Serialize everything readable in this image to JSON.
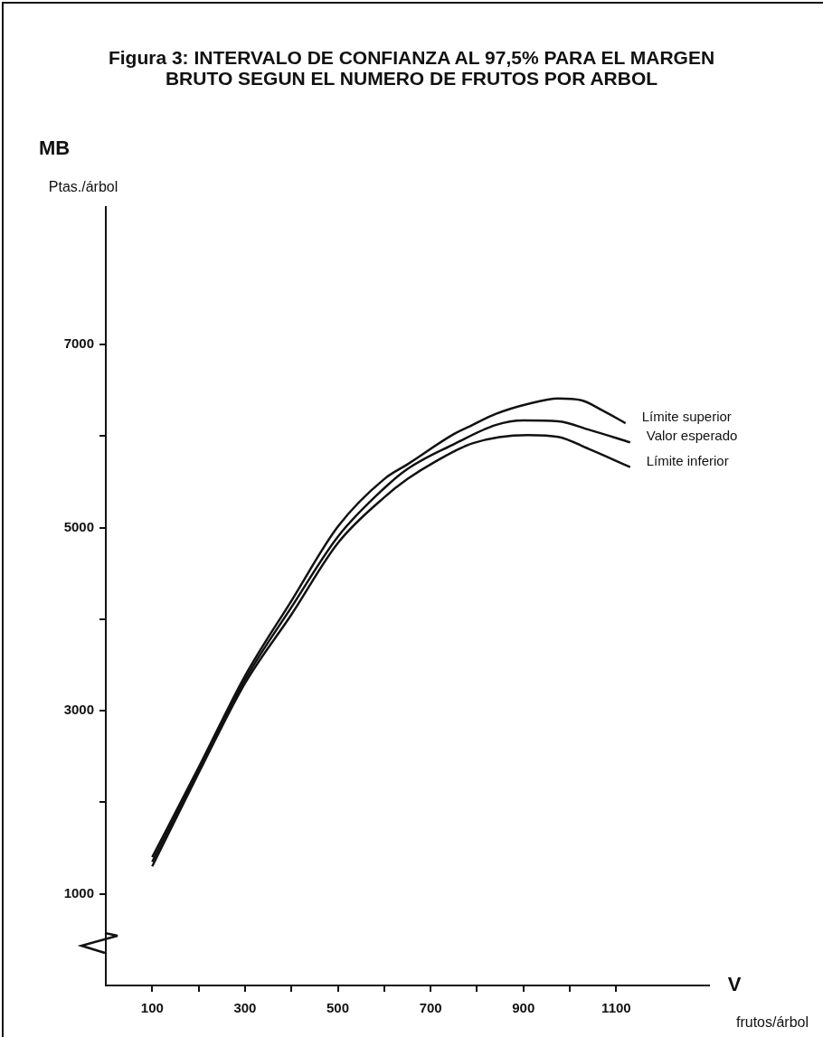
{
  "chart_data": {
    "type": "line",
    "title": "Figura 3: INTERVALO DE CONFIANZA AL 97,5% PARA EL MARGEN BRUTO SEGUN EL NUMERO DE FRUTOS POR ARBOL",
    "xlabel": "V",
    "ylabel": "MB",
    "annotations": [
      "Ptas./árbol",
      "frutos/árbol"
    ],
    "xlim": [
      0,
      1300
    ],
    "ylim": [
      0,
      8500
    ],
    "xticks": [
      100,
      {
        "value": 200,
        "label": null
      },
      300,
      {
        "value": 400,
        "label": null
      },
      500,
      {
        "value": 600,
        "label": null
      },
      700,
      {
        "value": 800,
        "label": null
      },
      900,
      {
        "value": 1000,
        "label": null
      },
      1100
    ],
    "yticks": [
      1000,
      {
        "value": 2000,
        "label": null
      },
      3000,
      {
        "value": 4000,
        "label": null
      },
      5000,
      {
        "value": 6000,
        "label": null
      },
      7000
    ],
    "grid": false,
    "legend": false,
    "marker": "none",
    "line_style": "solid",
    "series": [
      {
        "name": "Límite superior",
        "color": "#111111",
        "x": [
          100,
          200,
          300,
          400,
          500,
          600,
          650,
          750,
          790,
          840,
          910,
          975,
          1025,
          1070,
          1120
        ],
        "values": [
          1400,
          2380,
          3380,
          4200,
          5010,
          5530,
          5690,
          6020,
          6120,
          6240,
          6350,
          6410,
          6390,
          6280,
          6140
        ]
      },
      {
        "name": "Valor esperado",
        "color": "#111111",
        "x": [
          100,
          200,
          300,
          400,
          500,
          600,
          650,
          750,
          840,
          900,
          975,
          1040,
          1130
        ],
        "values": [
          1350,
          2350,
          3340,
          4130,
          4900,
          5430,
          5640,
          5910,
          6120,
          6170,
          6160,
          6070,
          5930
        ]
      },
      {
        "name": "Límite inferior",
        "color": "#111111",
        "x": [
          100,
          200,
          300,
          400,
          500,
          600,
          650,
          710,
          790,
          910,
          975,
          1040,
          1130
        ],
        "values": [
          1300,
          2320,
          3300,
          4050,
          4830,
          5330,
          5530,
          5720,
          5920,
          6010,
          5990,
          5860,
          5660
        ]
      }
    ]
  }
}
